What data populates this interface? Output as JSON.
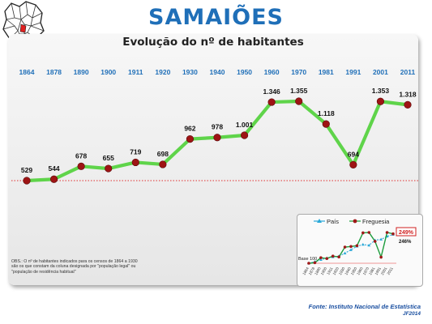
{
  "header": {
    "place_name": "SAMAIÕES"
  },
  "chart_data": {
    "type": "line",
    "title": "Evolução do nº de habitantes",
    "categories": [
      "1864",
      "1878",
      "1890",
      "1900",
      "1911",
      "1920",
      "1930",
      "1940",
      "1950",
      "1960",
      "1970",
      "1981",
      "1991",
      "2001",
      "2011"
    ],
    "series": [
      {
        "values": [
          529,
          544,
          678,
          655,
          719,
          698,
          962,
          978,
          1001,
          1346,
          1355,
          1118,
          694,
          1353,
          1318
        ]
      }
    ],
    "data_labels": [
      "529",
      "544",
      "678",
      "655",
      "719",
      "698",
      "962",
      "978",
      "1.001",
      "1.346",
      "1.355",
      "1.118",
      "694",
      "1.353",
      "1.318"
    ],
    "reference_line": {
      "value": 529,
      "color": "#e03030",
      "style": "dotted"
    },
    "ylim": [
      380,
      1420
    ],
    "grid": false,
    "colors": {
      "line": "#5fd44a",
      "marker": "#9e1414",
      "tick_label": "#1f6fb8"
    }
  },
  "inset": {
    "type": "line",
    "legend": [
      "País",
      "Freguesia"
    ],
    "categories": [
      "1864",
      "1878",
      "1890",
      "1900",
      "1911",
      "1920",
      "1930",
      "1940",
      "1950",
      "1960",
      "1970",
      "1981",
      "1991",
      "2001",
      "2011"
    ],
    "series": [
      {
        "name": "País",
        "values": [
          100,
          108,
          118,
          126,
          132,
          136,
          151,
          168,
          186,
          195,
          191,
          217,
          221,
          236,
          246
        ],
        "color": "#2aa8d8"
      },
      {
        "name": "Freguesia",
        "values": [
          100,
          103,
          128,
          124,
          136,
          132,
          182,
          185,
          189,
          254,
          256,
          211,
          131,
          256,
          249
        ],
        "color": "#1c9c3c"
      }
    ],
    "base_label": "Base 100",
    "end_labels": {
      "freguesia": "249%",
      "pais": "246%"
    },
    "ylim": [
      80,
      290
    ]
  },
  "footer": {
    "obs": "OBS.: O nº de habitantes indicados para os censos de 1864 a 1930 são os que constam da coluna designada por \"população legal\" ou \"população de residência habitual\"",
    "source": "Fonte: Instituto Nacional de Estatística",
    "author": "JF2014"
  }
}
